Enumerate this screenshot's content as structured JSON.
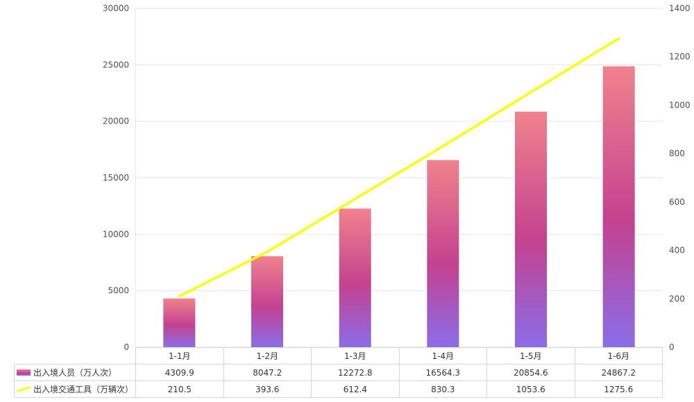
{
  "chart_data": {
    "type": "combo",
    "title": "",
    "categories": [
      "1-1月",
      "1-2月",
      "1-3月",
      "1-4月",
      "1-5月",
      "1-6月"
    ],
    "series": [
      {
        "name": "出入境人员（万人次）",
        "type": "bar",
        "axis": "left",
        "values": [
          4309.9,
          8047.2,
          12272.8,
          16564.3,
          20854.6,
          24867.2
        ]
      },
      {
        "name": "出入境交通工具（万辆次）",
        "type": "line",
        "axis": "right",
        "values": [
          210.5,
          393.6,
          612.4,
          830.3,
          1053.6,
          1275.6
        ]
      }
    ],
    "left_axis": {
      "min": 0,
      "max": 30000,
      "step": 5000
    },
    "right_axis": {
      "min": 0,
      "max": 1400,
      "step": 200
    },
    "grid": true,
    "legend_position": "table-left",
    "colors": {
      "bar_gradient_top": "#f0828e",
      "bar_gradient_mid": "#c4428f",
      "bar_gradient_bottom": "#8a6de9",
      "line": "#fdfd00",
      "gridline": "#e5e5e5",
      "axis_text": "#4d4d4d",
      "table_border": "#d6d6d6"
    }
  }
}
